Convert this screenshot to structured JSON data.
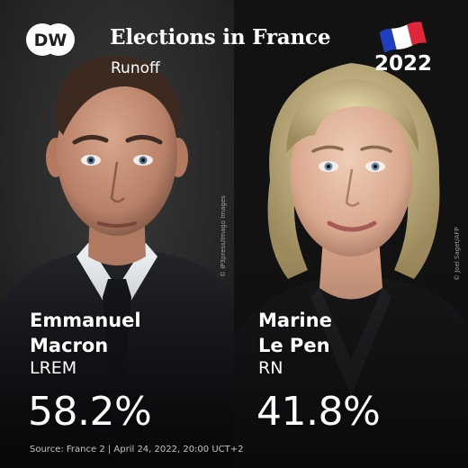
{
  "header": {
    "logo_text": "DW",
    "title": "Elections in France",
    "subtitle": "Runoff",
    "year": "2022",
    "flag_icon": "france-flag-icon"
  },
  "colors": {
    "flag_blue": "#1f3fbf",
    "flag_white": "#ffffff",
    "flag_red": "#e1263a",
    "left_background": "#2a2a2a",
    "right_background": "#141414"
  },
  "candidates": [
    {
      "first_name": "Emmanuel",
      "last_name": "Macron",
      "party": "LREM",
      "result": "58.2%",
      "photo_credit": "© IP3press/Imago Images"
    },
    {
      "first_name": "Marine",
      "last_name": "Le Pen",
      "party": "RN",
      "result": "41.8%",
      "photo_credit": "© Joel Saget/AFP"
    }
  ],
  "footer": {
    "source": "Source: France 2 | April 24, 2022, 20:00 UCT+2"
  }
}
